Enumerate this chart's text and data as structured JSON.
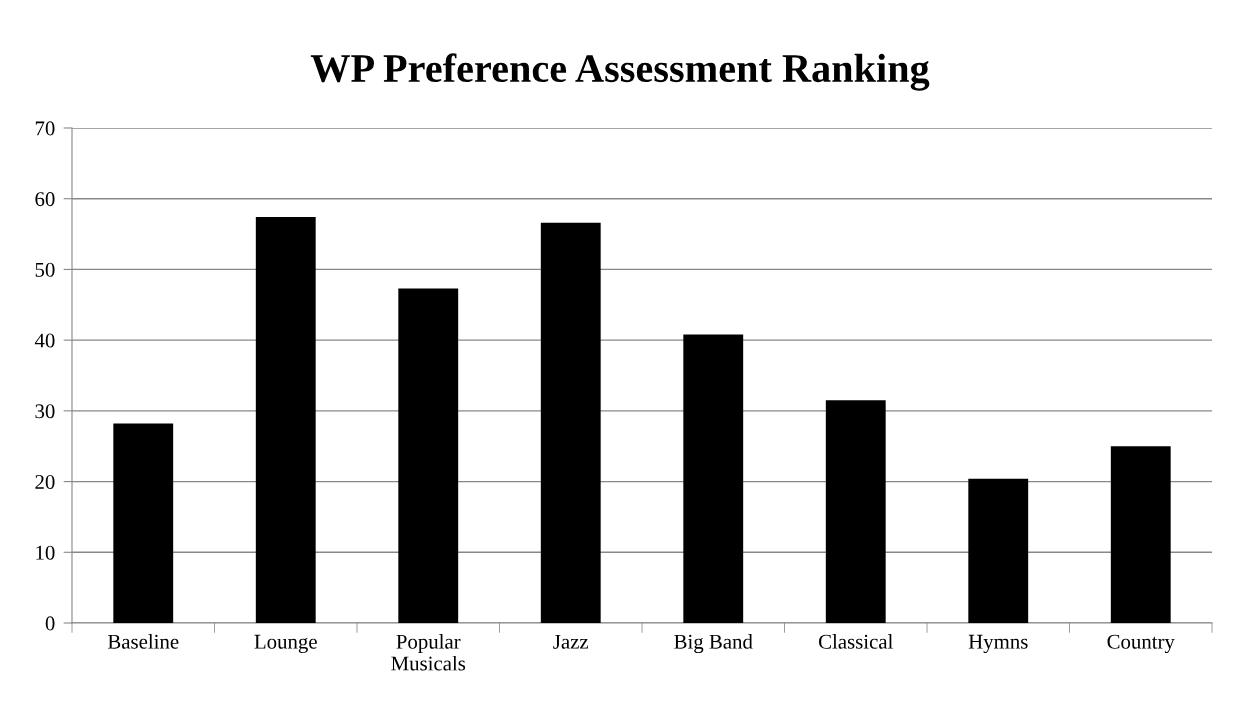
{
  "chart_data": {
    "type": "bar",
    "title": "WP Preference Assessment Ranking",
    "categories": [
      "Baseline",
      "Lounge",
      "Popular\nMusicals",
      "Jazz",
      "Big Band",
      "Classical",
      "Hymns",
      "Country"
    ],
    "values": [
      28.2,
      57.4,
      47.3,
      56.6,
      40.8,
      31.5,
      20.4,
      25.0
    ],
    "color": "#000000",
    "ylim": [
      0,
      70
    ],
    "yticks": [
      0,
      10,
      20,
      30,
      40,
      50,
      60,
      70
    ],
    "grid": "y",
    "legend": false
  }
}
